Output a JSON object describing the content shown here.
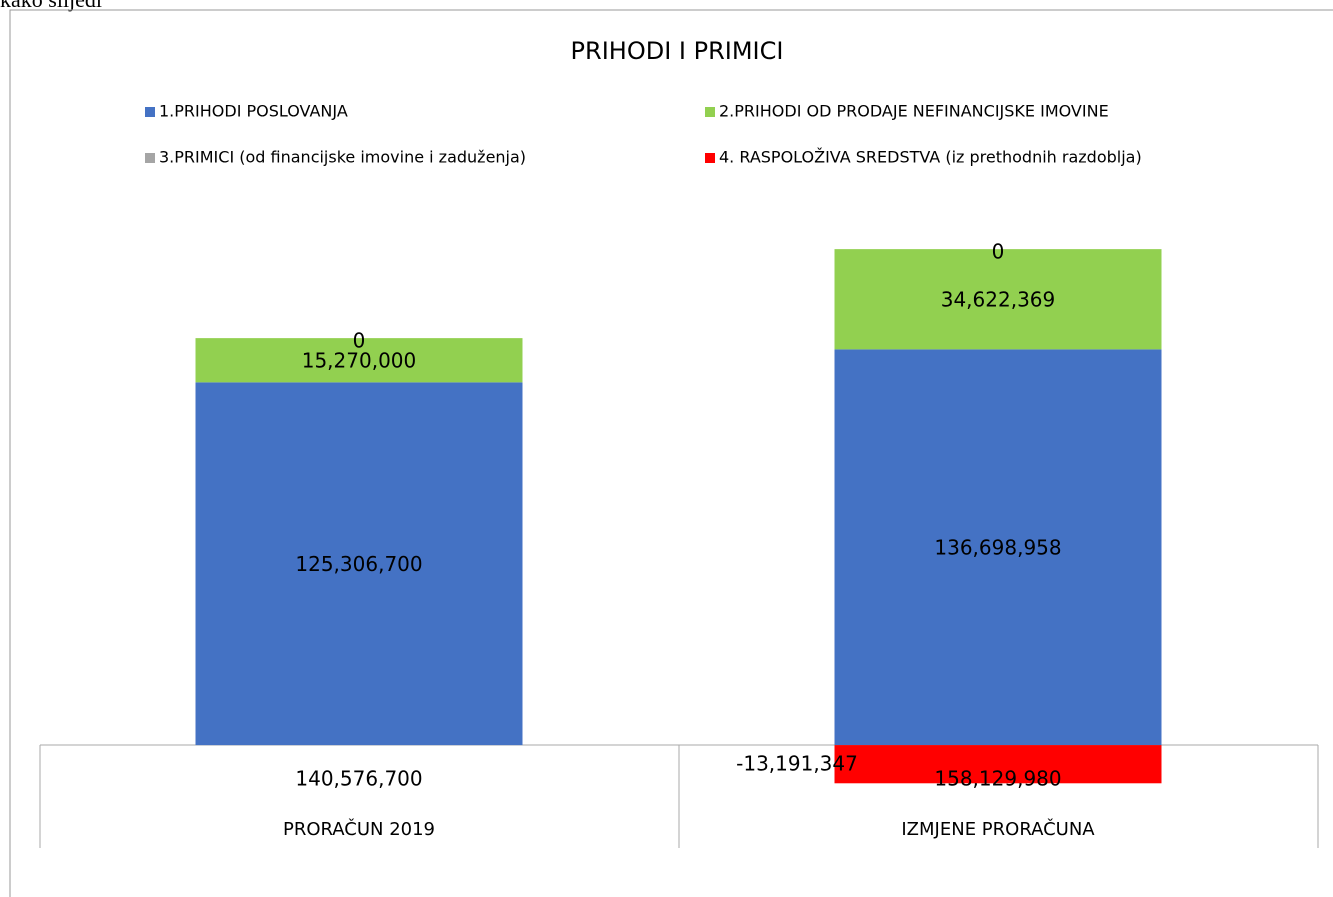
{
  "caption": "kako slijedi",
  "chart_data": {
    "type": "stacked_bar",
    "title": "PRIHODI I PRIMICI",
    "categories": [
      "PRORAČUN 2019",
      "IZMJENE PRORAČUNA"
    ],
    "series": [
      {
        "name": "1.PRIHODI POSLOVANJA",
        "color": "#4472c4",
        "values": [
          125306700,
          136698958
        ],
        "value_labels": [
          "125,306,700",
          "136,698,958"
        ]
      },
      {
        "name": "2.PRIHODI OD PRODAJE NEFINANCIJSKE IMOVINE",
        "color": "#92d050",
        "values": [
          15270000,
          34622369
        ],
        "value_labels": [
          "15,270,000",
          "34,622,369"
        ]
      },
      {
        "name": "3.PRIMICI (od financijske imovine i zaduženja)",
        "color": "#a5a5a5",
        "values": [
          0,
          0
        ],
        "value_labels": [
          "0",
          "0"
        ]
      },
      {
        "name": "4. RASPOLOŽIVA SREDSTVA (iz prethodnih razdoblja)",
        "color": "#ff0000",
        "values": [
          null,
          -13191347
        ],
        "value_labels": [
          null,
          "-13,191,347"
        ]
      }
    ],
    "totals": [
      140576700,
      158129980
    ],
    "total_labels": [
      "140,576,700",
      "158,129,980"
    ],
    "ylim": [
      -20000000,
      180000000
    ]
  }
}
